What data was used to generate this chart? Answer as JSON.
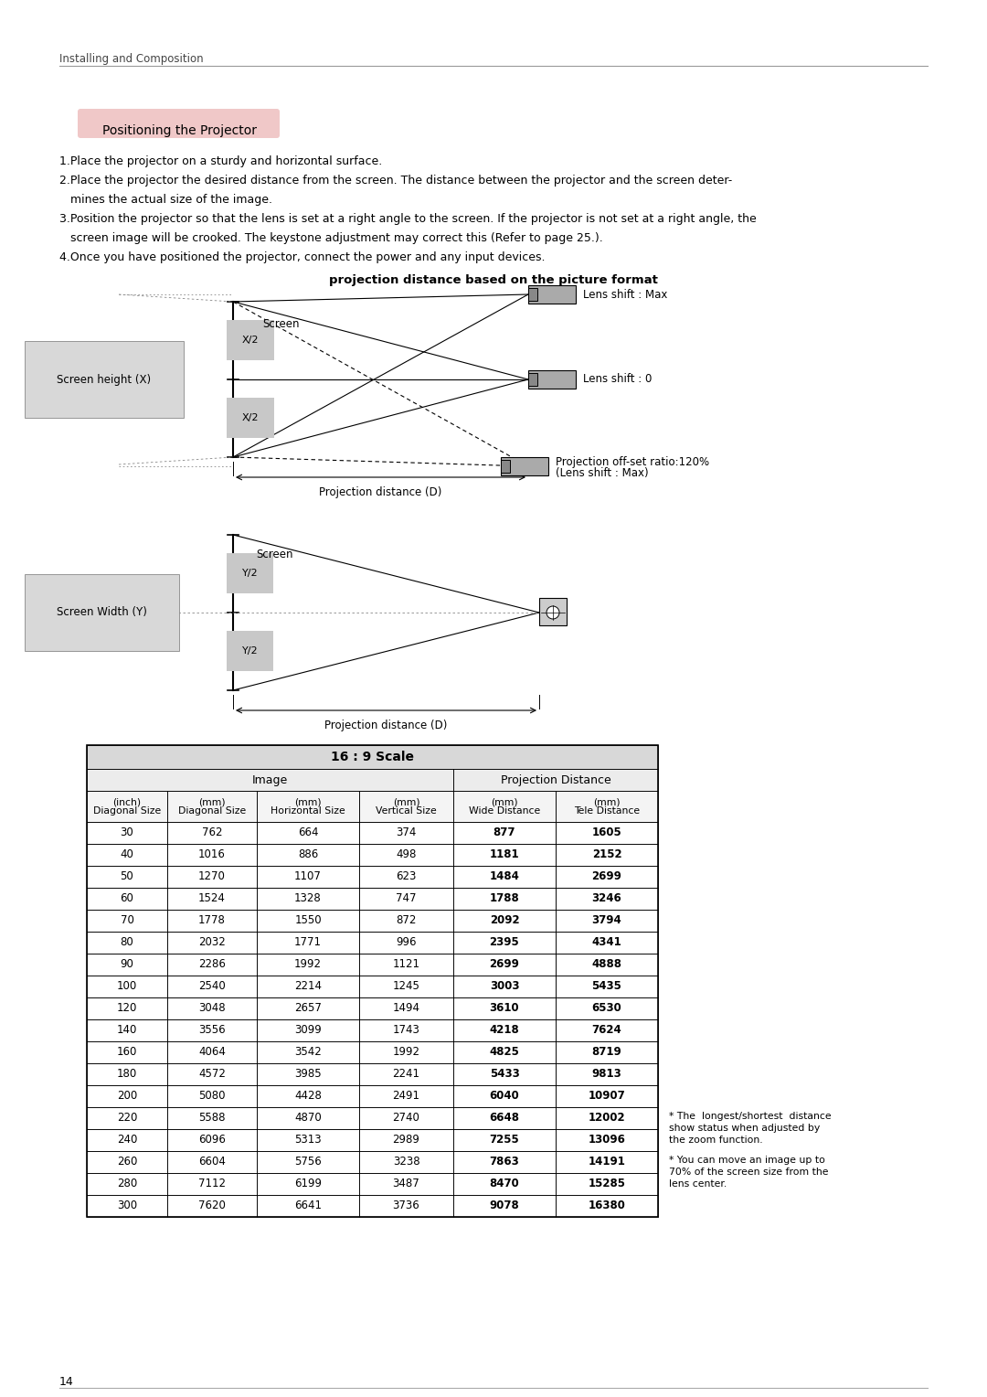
{
  "page_title": "Installing and Composition",
  "section_title": "Positioning the Projector",
  "inst1": "1.Place the projector on a sturdy and horizontal surface.",
  "inst2a": "2.Place the projector the desired distance from the screen. The distance between the projector and the screen deter-",
  "inst2b": "   mines the actual size of the image.",
  "inst3a": "3.Position the projector so that the lens is set at a right angle to the screen. If the projector is not set at a right angle, the",
  "inst3b": "   screen image will be crooked. The keystone adjustment may correct this (Refer to page 25.).",
  "inst4": "4.Once you have positioned the projector, connect the power and any input devices.",
  "diagram_title": "projection distance based on the picture format",
  "table_title": "16 : 9 Scale",
  "table_data": [
    [
      30,
      762,
      664,
      374,
      877,
      1605
    ],
    [
      40,
      1016,
      886,
      498,
      1181,
      2152
    ],
    [
      50,
      1270,
      1107,
      623,
      1484,
      2699
    ],
    [
      60,
      1524,
      1328,
      747,
      1788,
      3246
    ],
    [
      70,
      1778,
      1550,
      872,
      2092,
      3794
    ],
    [
      80,
      2032,
      1771,
      996,
      2395,
      4341
    ],
    [
      90,
      2286,
      1992,
      1121,
      2699,
      4888
    ],
    [
      100,
      2540,
      2214,
      1245,
      3003,
      5435
    ],
    [
      120,
      3048,
      2657,
      1494,
      3610,
      6530
    ],
    [
      140,
      3556,
      3099,
      1743,
      4218,
      7624
    ],
    [
      160,
      4064,
      3542,
      1992,
      4825,
      8719
    ],
    [
      180,
      4572,
      3985,
      2241,
      5433,
      9813
    ],
    [
      200,
      5080,
      4428,
      2491,
      6040,
      10907
    ],
    [
      220,
      5588,
      4870,
      2740,
      6648,
      12002
    ],
    [
      240,
      6096,
      5313,
      2989,
      7255,
      13096
    ],
    [
      260,
      6604,
      5756,
      3238,
      7863,
      14191
    ],
    [
      280,
      7112,
      6199,
      3487,
      8470,
      15285
    ],
    [
      300,
      7620,
      6641,
      3736,
      9078,
      16380
    ]
  ],
  "footnote1": "* The  longest/shortest  distance\nshow status when adjusted by\nthe zoom function.",
  "footnote2": "* You can move an image up to\n70% of the screen size from the\nlens center.",
  "page_number": "14",
  "bg_color": "#ffffff",
  "section_bg": "#f0c8c8",
  "text_color": "#000000"
}
